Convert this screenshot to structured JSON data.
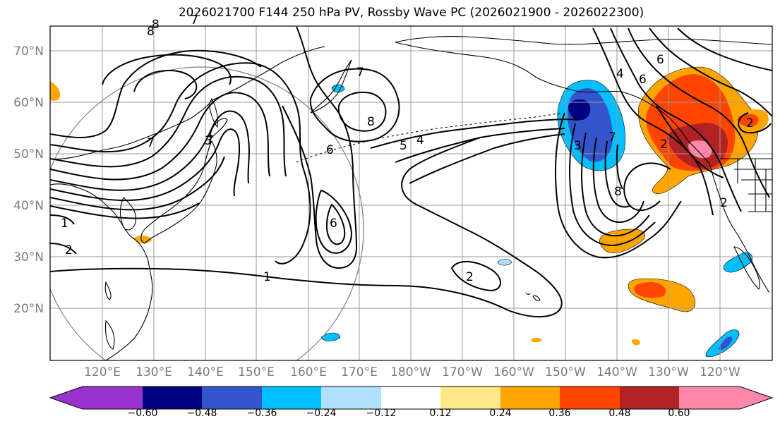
{
  "title": "2026021700 F144 250 hPa PV, Rossby Wave PC (2026021900 - 2026022300)",
  "lat_labels": [
    "70°N",
    "60°N",
    "50°N",
    "40°N",
    "30°N",
    "20°N"
  ],
  "lon_labels": [
    "120°E",
    "130°E",
    "140°E",
    "150°E",
    "160°E",
    "170°E",
    "180°W",
    "170°W",
    "160°W",
    "150°W",
    "140°W",
    "130°W",
    "120°W"
  ],
  "contour_labels": [
    "8",
    "7",
    "7",
    "8",
    "8",
    "6",
    "5",
    "4",
    "6",
    "7",
    "1",
    "2",
    "7",
    "2",
    "1",
    "2",
    "6",
    "3",
    "7",
    "8",
    "4",
    "6",
    "2",
    "2",
    "3"
  ],
  "colorbar": {
    "ticks": [
      "−0.60",
      "−0.48",
      "−0.36",
      "−0.24",
      "−0.12",
      "0.12",
      "0.24",
      "0.36",
      "0.48",
      "0.60"
    ],
    "colors": [
      "#9933cc",
      "#000080",
      "#3355cc",
      "#00bfff",
      "#b0e0ff",
      "#ffffff",
      "#ffe88a",
      "#ffa500",
      "#ff4500",
      "#b22222",
      "#ff88aa"
    ]
  }
}
